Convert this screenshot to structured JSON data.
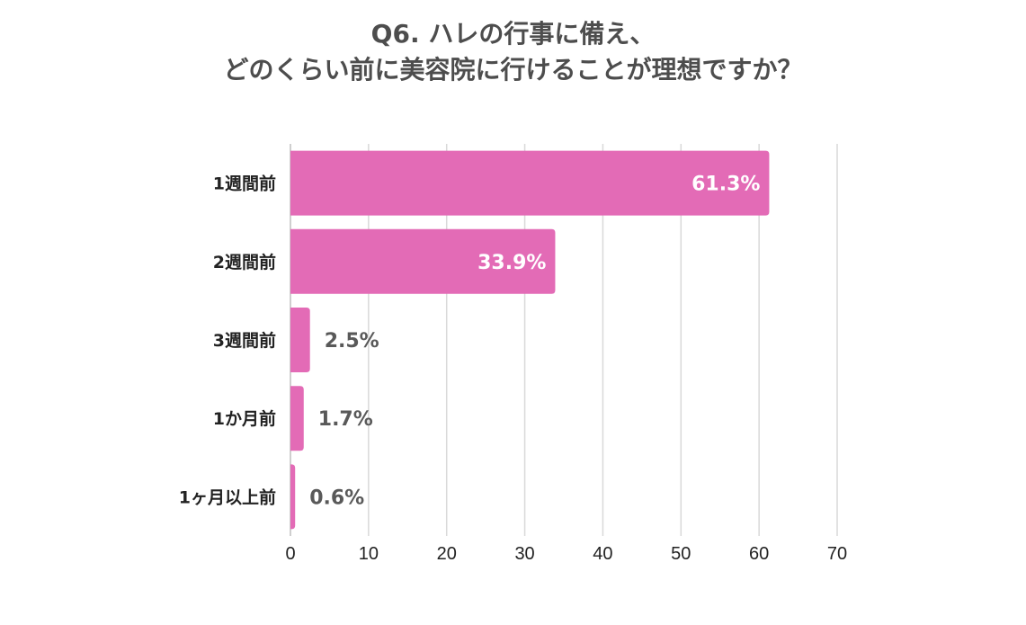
{
  "chart_data": {
    "type": "bar",
    "orientation": "horizontal",
    "title": [
      "Q6. ハレの行事に備え、",
      "どのくらい前に美容院に行けることが理想ですか？"
    ],
    "categories": [
      "1週間前",
      "2週間前",
      "3週間前",
      "1か月前",
      "1ヶ月以上前"
    ],
    "values": [
      61.3,
      33.9,
      2.5,
      1.7,
      0.6
    ],
    "value_labels": [
      "61.3%",
      "33.9%",
      "2.5%",
      "1.7%",
      "0.6%"
    ],
    "xlim": [
      0,
      70
    ],
    "xticks": [
      0,
      10,
      20,
      30,
      40,
      50,
      60,
      70
    ],
    "grid": "vertical",
    "bar_color": "#e36bb6",
    "label_inside_color": "#ffffff",
    "label_outside_color": "#595959",
    "grid_color": "#d9d9d9"
  }
}
